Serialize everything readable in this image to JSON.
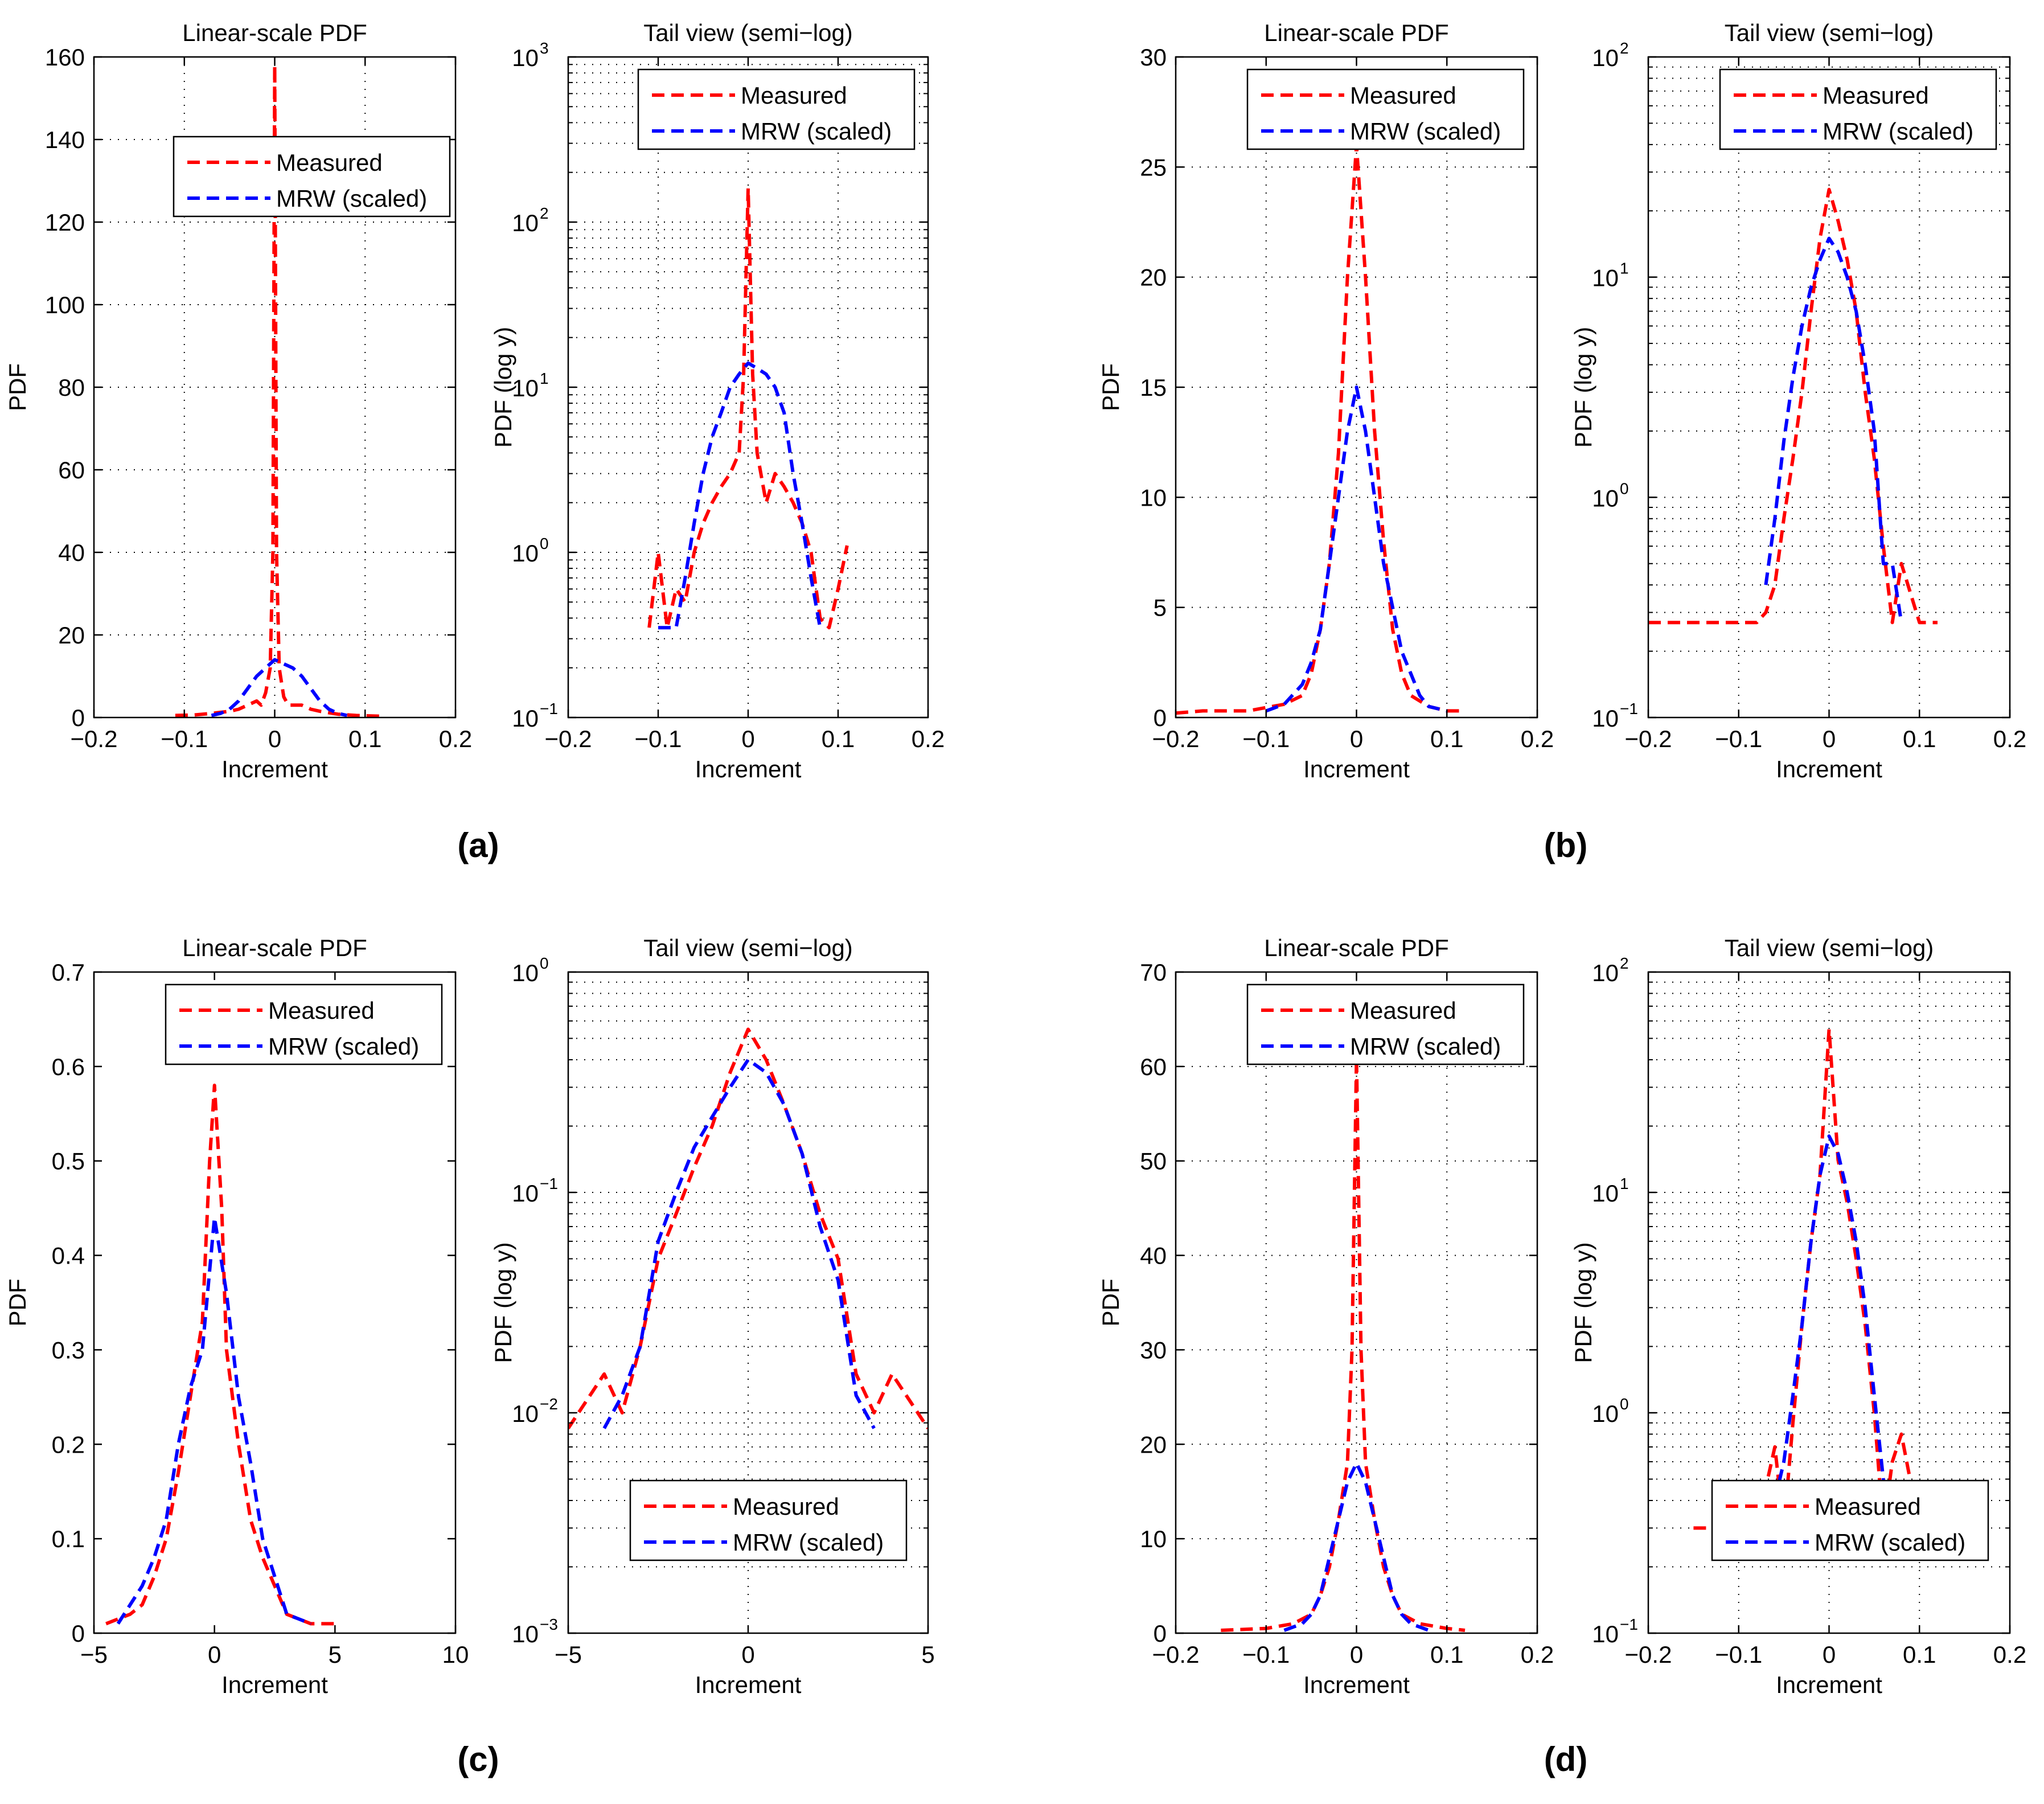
{
  "panel_labels": [
    "(a)",
    "(b)",
    "(c)",
    "(d)"
  ],
  "colors": {
    "measured": "#ff0000",
    "mrw": "#0000ff",
    "axis": "#000000",
    "grid": "#000000"
  },
  "chart_data": [
    {
      "panel": "(a)",
      "id": "a-linear",
      "type": "line",
      "title": "Linear-scale PDF",
      "xlabel": "Increment",
      "ylabel": "PDF",
      "xlim": [
        -0.2,
        0.2
      ],
      "ylim": [
        0,
        160
      ],
      "yscale": "linear",
      "xticks": [
        -0.2,
        -0.1,
        0,
        0.1,
        0.2
      ],
      "xtick_labels": [
        "−0.2",
        "−0.1",
        "0",
        "0.1",
        "0.2"
      ],
      "yticks": [
        0,
        20,
        40,
        60,
        80,
        100,
        120,
        140,
        160
      ],
      "ytick_labels": [
        "0",
        "20",
        "40",
        "60",
        "80",
        "100",
        "120",
        "140",
        "160"
      ],
      "grid": true,
      "legend": {
        "position": "upper-center"
      },
      "series": [
        {
          "name": "Measured",
          "style": "dashed",
          "color": "#ff0000",
          "x": [
            -0.11,
            -0.09,
            -0.07,
            -0.05,
            -0.04,
            -0.03,
            -0.02,
            -0.015,
            -0.01,
            -0.005,
            -0.002,
            0,
            0.002,
            0.005,
            0.01,
            0.015,
            0.02,
            0.03,
            0.04,
            0.05,
            0.07,
            0.09,
            0.12
          ],
          "y": [
            0.5,
            0.6,
            1,
            1.5,
            2,
            3,
            4,
            3,
            6,
            12,
            40,
            158,
            40,
            12,
            5,
            3,
            3,
            3,
            2,
            1.5,
            0.8,
            0.5,
            0.3
          ]
        },
        {
          "name": "MRW (scaled)",
          "style": "dashed",
          "color": "#0000ff",
          "x": [
            -0.07,
            -0.06,
            -0.05,
            -0.04,
            -0.03,
            -0.02,
            -0.01,
            0,
            0.01,
            0.02,
            0.03,
            0.04,
            0.05,
            0.06,
            0.07,
            0.08
          ],
          "y": [
            0.5,
            1,
            2,
            4,
            7,
            10,
            12,
            14,
            13,
            12,
            10,
            7,
            4,
            2,
            1,
            0.5
          ]
        }
      ]
    },
    {
      "panel": "(a)",
      "id": "a-log",
      "type": "line",
      "title": "Tail view (semi−log)",
      "xlabel": "Increment",
      "ylabel": "PDF (log y)",
      "xlim": [
        -0.2,
        0.2
      ],
      "ylim": [
        0.1,
        1000
      ],
      "yscale": "log",
      "xticks": [
        -0.2,
        -0.1,
        0,
        0.1,
        0.2
      ],
      "xtick_labels": [
        "−0.2",
        "−0.1",
        "0",
        "0.1",
        "0.2"
      ],
      "ytick_labels": [
        "10",
        "10",
        "10",
        "10",
        "10"
      ],
      "ytick_exponents": [
        "−1",
        "0",
        "1",
        "2",
        "3"
      ],
      "grid": true,
      "legend": {
        "position": "top-right"
      },
      "series": [
        {
          "name": "Measured",
          "style": "dashed",
          "color": "#ff0000",
          "x": [
            -0.11,
            -0.1,
            -0.09,
            -0.08,
            -0.07,
            -0.06,
            -0.05,
            -0.04,
            -0.03,
            -0.02,
            -0.01,
            -0.005,
            0,
            0.005,
            0.01,
            0.02,
            0.03,
            0.04,
            0.05,
            0.06,
            0.07,
            0.08,
            0.09,
            0.1,
            0.11
          ],
          "y": [
            0.35,
            1,
            0.35,
            0.6,
            0.5,
            1,
            1.5,
            2,
            2.5,
            3,
            4,
            12,
            160,
            12,
            4,
            2,
            3,
            2.5,
            2,
            1.5,
            1,
            0.4,
            0.35,
            0.6,
            1.1
          ]
        },
        {
          "name": "MRW (scaled)",
          "style": "dashed",
          "color": "#0000ff",
          "x": [
            -0.1,
            -0.08,
            -0.07,
            -0.06,
            -0.05,
            -0.04,
            -0.03,
            -0.02,
            -0.01,
            0,
            0.01,
            0.02,
            0.03,
            0.04,
            0.05,
            0.06,
            0.07,
            0.08
          ],
          "y": [
            0.35,
            0.35,
            0.7,
            1.5,
            3,
            5,
            7,
            10,
            12,
            14,
            13,
            12,
            10,
            7,
            3,
            1.5,
            0.7,
            0.35
          ]
        }
      ]
    },
    {
      "panel": "(b)",
      "id": "b-linear",
      "type": "line",
      "title": "Linear-scale PDF",
      "xlabel": "Increment",
      "ylabel": "PDF",
      "xlim": [
        -0.2,
        0.2
      ],
      "ylim": [
        0,
        30
      ],
      "yscale": "linear",
      "xticks": [
        -0.2,
        -0.1,
        0,
        0.1,
        0.2
      ],
      "xtick_labels": [
        "−0.2",
        "−0.1",
        "0",
        "0.1",
        "0.2"
      ],
      "yticks": [
        0,
        5,
        10,
        15,
        20,
        25,
        30
      ],
      "ytick_labels": [
        "0",
        "5",
        "10",
        "15",
        "20",
        "25",
        "30"
      ],
      "grid": true,
      "legend": {
        "position": "top-right"
      },
      "series": [
        {
          "name": "Measured",
          "style": "dashed",
          "color": "#ff0000",
          "x": [
            -0.2,
            -0.17,
            -0.12,
            -0.08,
            -0.06,
            -0.05,
            -0.04,
            -0.03,
            -0.02,
            -0.01,
            0,
            0.01,
            0.02,
            0.03,
            0.04,
            0.05,
            0.06,
            0.08,
            0.1,
            0.12
          ],
          "y": [
            0.2,
            0.3,
            0.3,
            0.6,
            1,
            2,
            4,
            7,
            12,
            20,
            26,
            20,
            13,
            8,
            4,
            2,
            1,
            0.5,
            0.3,
            0.3
          ]
        },
        {
          "name": "MRW (scaled)",
          "style": "dashed",
          "color": "#0000ff",
          "x": [
            -0.1,
            -0.08,
            -0.06,
            -0.05,
            -0.04,
            -0.03,
            -0.02,
            -0.01,
            0,
            0.01,
            0.02,
            0.03,
            0.04,
            0.05,
            0.06,
            0.07,
            0.08,
            0.1
          ],
          "y": [
            0.3,
            0.6,
            1.5,
            2.5,
            4,
            7,
            10,
            13,
            15,
            13,
            10,
            7,
            5,
            3,
            2,
            1,
            0.5,
            0.3
          ]
        }
      ]
    },
    {
      "panel": "(b)",
      "id": "b-log",
      "type": "line",
      "title": "Tail view (semi−log)",
      "xlabel": "Increment",
      "ylabel": "PDF (log y)",
      "xlim": [
        -0.2,
        0.2
      ],
      "ylim": [
        0.1,
        100
      ],
      "yscale": "log",
      "xticks": [
        -0.2,
        -0.1,
        0,
        0.1,
        0.2
      ],
      "xtick_labels": [
        "−0.2",
        "−0.1",
        "0",
        "0.1",
        "0.2"
      ],
      "ytick_labels": [
        "10",
        "10",
        "10",
        "10"
      ],
      "ytick_exponents": [
        "−1",
        "0",
        "1",
        "2"
      ],
      "grid": true,
      "legend": {
        "position": "top-right"
      },
      "series": [
        {
          "name": "Measured",
          "style": "dashed",
          "color": "#ff0000",
          "x": [
            -0.2,
            -0.17,
            -0.1,
            -0.08,
            -0.07,
            -0.06,
            -0.05,
            -0.04,
            -0.03,
            -0.02,
            -0.01,
            0,
            0.01,
            0.02,
            0.03,
            0.04,
            0.05,
            0.06,
            0.07,
            0.08,
            0.1,
            0.12
          ],
          "y": [
            0.27,
            0.27,
            0.27,
            0.27,
            0.3,
            0.4,
            0.8,
            1.5,
            3,
            7,
            15,
            25,
            18,
            12,
            7,
            3,
            1.5,
            0.6,
            0.27,
            0.5,
            0.27,
            0.27
          ]
        },
        {
          "name": "MRW (scaled)",
          "style": "dashed",
          "color": "#0000ff",
          "x": [
            -0.07,
            -0.06,
            -0.05,
            -0.04,
            -0.03,
            -0.02,
            -0.01,
            0,
            0.01,
            0.02,
            0.03,
            0.04,
            0.05,
            0.06,
            0.07,
            0.08
          ],
          "y": [
            0.4,
            0.8,
            1.8,
            3.5,
            6,
            9,
            12,
            15,
            13,
            10,
            7,
            4,
            2,
            0.5,
            0.5,
            0.27
          ]
        }
      ]
    },
    {
      "panel": "(c)",
      "id": "c-linear",
      "type": "line",
      "title": "Linear-scale PDF",
      "xlabel": "Increment",
      "ylabel": "PDF",
      "xlim": [
        -5,
        10
      ],
      "ylim": [
        0,
        0.7
      ],
      "yscale": "linear",
      "xticks": [
        -5,
        0,
        5,
        10
      ],
      "xtick_labels": [
        "−5",
        "0",
        "5",
        "10"
      ],
      "yticks": [
        0,
        0.1,
        0.2,
        0.3,
        0.4,
        0.5,
        0.6,
        0.7
      ],
      "ytick_labels": [
        "0",
        "0.1",
        "0.2",
        "0.3",
        "0.4",
        "0.5",
        "0.6",
        "0.7"
      ],
      "grid": false,
      "legend": {
        "position": "top-right"
      },
      "series": [
        {
          "name": "Measured",
          "style": "dashed",
          "color": "#ff0000",
          "x": [
            -4.5,
            -3.5,
            -3,
            -2.5,
            -2,
            -1.5,
            -1,
            -0.5,
            -0.2,
            0,
            0.3,
            0.5,
            1,
            1.5,
            2,
            2.5,
            3,
            4,
            5
          ],
          "y": [
            0.01,
            0.02,
            0.03,
            0.06,
            0.1,
            0.17,
            0.25,
            0.33,
            0.5,
            0.58,
            0.45,
            0.3,
            0.2,
            0.12,
            0.08,
            0.05,
            0.02,
            0.01,
            0.01
          ]
        },
        {
          "name": "MRW (scaled)",
          "style": "dashed",
          "color": "#0000ff",
          "x": [
            -4,
            -3,
            -2.5,
            -2,
            -1.5,
            -1,
            -0.5,
            0,
            0.5,
            1,
            1.5,
            2,
            2.5,
            3,
            4
          ],
          "y": [
            0.01,
            0.05,
            0.08,
            0.12,
            0.2,
            0.26,
            0.3,
            0.44,
            0.36,
            0.25,
            0.18,
            0.1,
            0.06,
            0.02,
            0.01
          ]
        }
      ]
    },
    {
      "panel": "(c)",
      "id": "c-log",
      "type": "line",
      "title": "Tail view (semi−log)",
      "xlabel": "Increment",
      "ylabel": "PDF (log y)",
      "xlim": [
        -5,
        5
      ],
      "ylim": [
        0.001,
        1
      ],
      "yscale": "log",
      "xticks": [
        -5,
        0,
        5
      ],
      "xtick_labels": [
        "−5",
        "0",
        "5"
      ],
      "ytick_labels": [
        "10",
        "10",
        "10",
        "10"
      ],
      "ytick_exponents": [
        "−3",
        "−2",
        "−1",
        "0"
      ],
      "grid": true,
      "legend": {
        "position": "lower-right"
      },
      "series": [
        {
          "name": "Measured",
          "style": "dashed",
          "color": "#ff0000",
          "x": [
            -5,
            -4,
            -3.5,
            -3,
            -2.5,
            -2,
            -1.5,
            -1,
            -0.5,
            0,
            0.5,
            1,
            1.5,
            2,
            2.5,
            3,
            3.5,
            4,
            5
          ],
          "y": [
            0.0085,
            0.015,
            0.01,
            0.02,
            0.05,
            0.08,
            0.13,
            0.2,
            0.35,
            0.55,
            0.4,
            0.25,
            0.15,
            0.08,
            0.05,
            0.015,
            0.01,
            0.015,
            0.0085
          ]
        },
        {
          "name": "MRW (scaled)",
          "style": "dashed",
          "color": "#0000ff",
          "x": [
            -4,
            -3.5,
            -3,
            -2.5,
            -2,
            -1.5,
            -1,
            -0.5,
            0,
            0.5,
            1,
            1.5,
            2,
            2.5,
            3,
            3.5
          ],
          "y": [
            0.0085,
            0.012,
            0.02,
            0.06,
            0.1,
            0.16,
            0.22,
            0.3,
            0.4,
            0.35,
            0.25,
            0.15,
            0.07,
            0.04,
            0.012,
            0.0085
          ]
        }
      ]
    },
    {
      "panel": "(d)",
      "id": "d-linear",
      "type": "line",
      "title": "Linear-scale PDF",
      "xlabel": "Increment",
      "ylabel": "PDF",
      "xlim": [
        -0.2,
        0.2
      ],
      "ylim": [
        0,
        70
      ],
      "yscale": "linear",
      "xticks": [
        -0.2,
        -0.1,
        0,
        0.1,
        0.2
      ],
      "xtick_labels": [
        "−0.2",
        "−0.1",
        "0",
        "0.1",
        "0.2"
      ],
      "yticks": [
        0,
        10,
        20,
        30,
        40,
        50,
        60,
        70
      ],
      "ytick_labels": [
        "0",
        "10",
        "20",
        "30",
        "40",
        "50",
        "60",
        "70"
      ],
      "grid": true,
      "legend": {
        "position": "top-right"
      },
      "series": [
        {
          "name": "Measured",
          "style": "dashed",
          "color": "#ff0000",
          "x": [
            -0.15,
            -0.1,
            -0.07,
            -0.05,
            -0.04,
            -0.03,
            -0.02,
            -0.01,
            -0.005,
            0,
            0.005,
            0.01,
            0.02,
            0.03,
            0.04,
            0.05,
            0.07,
            0.1,
            0.12
          ],
          "y": [
            0.3,
            0.5,
            1,
            2,
            4,
            7,
            12,
            18,
            30,
            61,
            30,
            18,
            12,
            7,
            4,
            2,
            1,
            0.5,
            0.3
          ]
        },
        {
          "name": "MRW (scaled)",
          "style": "dashed",
          "color": "#0000ff",
          "x": [
            -0.08,
            -0.06,
            -0.05,
            -0.04,
            -0.03,
            -0.02,
            -0.01,
            0,
            0.01,
            0.02,
            0.03,
            0.04,
            0.05,
            0.06,
            0.08
          ],
          "y": [
            0.3,
            1,
            2,
            4,
            8,
            12,
            16,
            18,
            16,
            12,
            8,
            4,
            2,
            1,
            0.3
          ]
        }
      ]
    },
    {
      "panel": "(d)",
      "id": "d-log",
      "type": "line",
      "title": "Tail view (semi−log)",
      "xlabel": "Increment",
      "ylabel": "PDF (log y)",
      "xlim": [
        -0.2,
        0.2
      ],
      "ylim": [
        0.1,
        100
      ],
      "yscale": "log",
      "xticks": [
        -0.2,
        -0.1,
        0,
        0.1,
        0.2
      ],
      "xtick_labels": [
        "−0.2",
        "−0.1",
        "0",
        "0.1",
        "0.2"
      ],
      "ytick_labels": [
        "10",
        "10",
        "10",
        "10"
      ],
      "ytick_exponents": [
        "−1",
        "0",
        "1",
        "2"
      ],
      "grid": true,
      "legend": {
        "position": "lower-right"
      },
      "series": [
        {
          "name": "Measured",
          "style": "dashed",
          "color": "#ff0000",
          "x": [
            -0.15,
            -0.1,
            -0.08,
            -0.06,
            -0.05,
            -0.04,
            -0.03,
            -0.02,
            -0.01,
            0,
            0.01,
            0.02,
            0.03,
            0.04,
            0.05,
            0.06,
            0.07,
            0.08,
            0.1,
            0.12
          ],
          "y": [
            0.3,
            0.3,
            0.3,
            0.7,
            0.3,
            0.9,
            2.5,
            6,
            12,
            55,
            14,
            9,
            5,
            2.5,
            1,
            0.3,
            0.6,
            0.8,
            0.3,
            0.3
          ]
        },
        {
          "name": "MRW (scaled)",
          "style": "dashed",
          "color": "#0000ff",
          "x": [
            -0.06,
            -0.05,
            -0.04,
            -0.03,
            -0.02,
            -0.01,
            0,
            0.01,
            0.02,
            0.03,
            0.04,
            0.05,
            0.06,
            0.065
          ],
          "y": [
            0.4,
            0.6,
            1.2,
            2.5,
            6,
            12,
            18,
            15,
            10,
            6,
            3,
            1.2,
            0.5,
            0.35
          ]
        }
      ]
    }
  ]
}
